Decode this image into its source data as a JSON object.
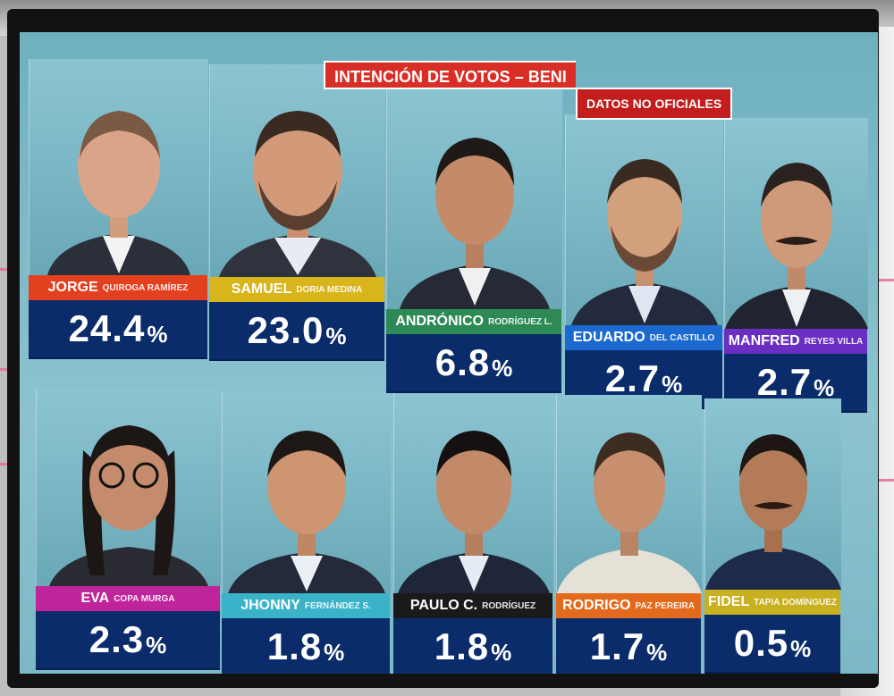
{
  "header": {
    "title": "INTENCIÓN DE VOTOS – BENI",
    "subtitle": "DATOS NO OFICIALES"
  },
  "candidates": [
    {
      "first": "JORGE",
      "last": "QUIROGA RAMÍREZ",
      "pct": "24.4",
      "sign": "%",
      "color": "#e2401f"
    },
    {
      "first": "SAMUEL",
      "last": "DORIA MEDINA",
      "pct": "23.0",
      "sign": "%",
      "color": "#d9b51c"
    },
    {
      "first": "ANDRÓNICO",
      "last": "RODRÍGUEZ L.",
      "pct": "6.8",
      "sign": "%",
      "color": "#2e8a55"
    },
    {
      "first": "EDUARDO",
      "last": "DEL CASTILLO",
      "pct": "2.7",
      "sign": "%",
      "color": "#1c6ad0"
    },
    {
      "first": "MANFRED",
      "last": "REYES VILLA",
      "pct": "2.7",
      "sign": "%",
      "color": "#6a2fc2"
    },
    {
      "first": "EVA",
      "last": "COPA MURGA",
      "pct": "2.3",
      "sign": "%",
      "color": "#c0249a"
    },
    {
      "first": "JHONNY",
      "last": "FERNÁNDEZ S.",
      "pct": "1.8",
      "sign": "%",
      "color": "#3ab3c9"
    },
    {
      "first": "PAULO C.",
      "last": "RODRÍGUEZ",
      "pct": "1.8",
      "sign": "%",
      "color": "#1a1a1a"
    },
    {
      "first": "RODRIGO",
      "last": "PAZ PEREIRA",
      "pct": "1.7",
      "sign": "%",
      "color": "#e36a1c"
    },
    {
      "first": "FIDEL",
      "last": "TAPIA DOMÍNGUEZ",
      "pct": "0.5",
      "sign": "%",
      "color": "#c9b021"
    }
  ]
}
